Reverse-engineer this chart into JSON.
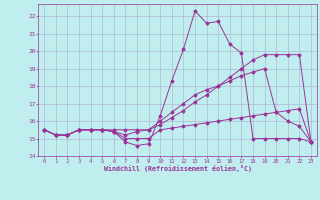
{
  "background_color": "#c0eeee",
  "grid_color": "#aaaacc",
  "line_color": "#993399",
  "xlim": [
    -0.5,
    23.5
  ],
  "ylim": [
    14,
    22.7
  ],
  "xticks": [
    0,
    1,
    2,
    3,
    4,
    5,
    6,
    7,
    8,
    9,
    10,
    11,
    12,
    13,
    14,
    15,
    16,
    17,
    18,
    19,
    20,
    21,
    22,
    23
  ],
  "yticks": [
    14,
    15,
    16,
    17,
    18,
    19,
    20,
    21,
    22
  ],
  "xlabel": "Windchill (Refroidissement éolien,°C)",
  "line1": {
    "x": [
      0,
      1,
      2,
      3,
      4,
      5,
      6,
      7,
      8,
      9,
      10,
      11,
      12,
      13,
      14,
      15,
      16,
      17,
      18,
      19,
      20,
      21,
      22,
      23
    ],
    "y": [
      15.5,
      15.2,
      15.2,
      15.5,
      15.5,
      15.5,
      15.4,
      14.8,
      14.6,
      14.7,
      16.3,
      18.3,
      20.1,
      22.3,
      21.6,
      21.7,
      20.4,
      19.9,
      15.0,
      15.0,
      15.0,
      15.0,
      15.0,
      14.8
    ]
  },
  "line2": {
    "x": [
      0,
      1,
      2,
      3,
      4,
      5,
      6,
      7,
      8,
      9,
      10,
      11,
      12,
      13,
      14,
      15,
      16,
      17,
      18,
      19,
      20,
      21,
      22,
      23
    ],
    "y": [
      15.5,
      15.2,
      15.2,
      15.5,
      15.5,
      15.5,
      15.4,
      15.0,
      15.0,
      15.0,
      15.5,
      15.6,
      15.7,
      15.8,
      15.9,
      16.0,
      16.1,
      16.2,
      16.3,
      16.4,
      16.5,
      16.6,
      16.7,
      14.8
    ]
  },
  "line3": {
    "x": [
      0,
      1,
      2,
      3,
      4,
      5,
      6,
      7,
      8,
      9,
      10,
      11,
      12,
      13,
      14,
      15,
      16,
      17,
      18,
      19,
      20,
      21,
      22,
      23
    ],
    "y": [
      15.5,
      15.2,
      15.2,
      15.5,
      15.5,
      15.5,
      15.4,
      15.2,
      15.4,
      15.5,
      16.0,
      16.5,
      17.0,
      17.5,
      17.8,
      18.0,
      18.3,
      18.6,
      18.8,
      19.0,
      16.5,
      16.0,
      15.7,
      14.8
    ]
  },
  "line4": {
    "x": [
      0,
      1,
      2,
      3,
      4,
      5,
      6,
      7,
      8,
      9,
      10,
      11,
      12,
      13,
      14,
      15,
      16,
      17,
      18,
      19,
      20,
      21,
      22,
      23
    ],
    "y": [
      15.5,
      15.2,
      15.2,
      15.5,
      15.5,
      15.5,
      15.5,
      15.5,
      15.5,
      15.5,
      15.8,
      16.2,
      16.6,
      17.1,
      17.5,
      18.0,
      18.5,
      19.0,
      19.5,
      19.8,
      19.8,
      19.8,
      19.8,
      14.8
    ]
  }
}
